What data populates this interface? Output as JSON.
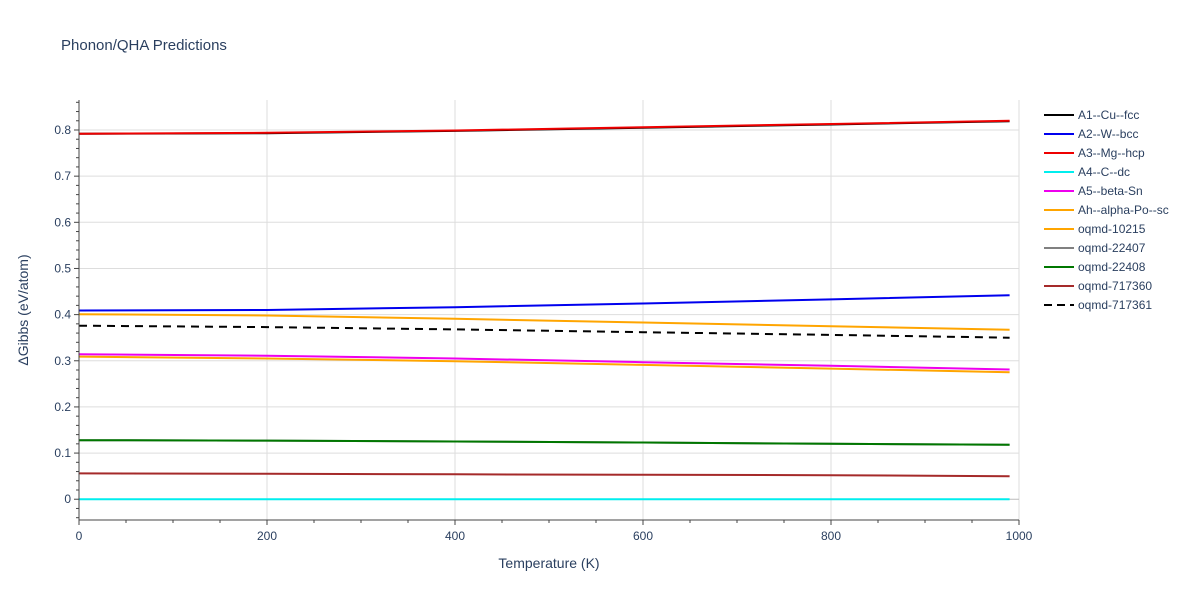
{
  "chart_data": {
    "type": "line",
    "title": "Phonon/QHA Predictions",
    "xlabel": "Temperature (K)",
    "ylabel": "ΔGibbs (eV/atom)",
    "xlim": [
      0,
      1000
    ],
    "ylim": [
      -0.045,
      0.865
    ],
    "xticks": [
      0,
      200,
      400,
      600,
      800,
      1000
    ],
    "xtick_labels": [
      "0",
      "200",
      "400",
      "600",
      "800",
      "1000"
    ],
    "yticks": [
      0,
      0.1,
      0.2,
      0.3,
      0.4,
      0.5,
      0.6,
      0.7,
      0.8
    ],
    "ytick_labels": [
      "0",
      "0.1",
      "0.2",
      "0.3",
      "0.4",
      "0.5",
      "0.6",
      "0.7",
      "0.8"
    ],
    "grid": true,
    "legend_position": "right",
    "series": [
      {
        "name": "A1--Cu--fcc",
        "color": "#000000",
        "dash": "solid",
        "x": [
          0,
          200,
          400,
          600,
          800,
          990
        ],
        "y": [
          0.792,
          0.793,
          0.798,
          0.805,
          0.812,
          0.819
        ]
      },
      {
        "name": "A2--W--bcc",
        "color": "#0000ee",
        "dash": "solid",
        "x": [
          0,
          200,
          400,
          600,
          800,
          990
        ],
        "y": [
          0.409,
          0.41,
          0.416,
          0.424,
          0.433,
          0.442
        ]
      },
      {
        "name": "A3--Mg--hcp",
        "color": "#ee0000",
        "dash": "solid",
        "x": [
          0,
          200,
          400,
          600,
          800,
          990
        ],
        "y": [
          0.792,
          0.794,
          0.799,
          0.806,
          0.813,
          0.82
        ]
      },
      {
        "name": "A4--C--dc",
        "color": "#00eeee",
        "dash": "solid",
        "x": [
          0,
          200,
          400,
          600,
          800,
          990
        ],
        "y": [
          0.0,
          0.0,
          0.0,
          0.0,
          0.0,
          0.0
        ]
      },
      {
        "name": "A5--beta-Sn",
        "color": "#ee00ee",
        "dash": "solid",
        "x": [
          0,
          200,
          400,
          600,
          800,
          990
        ],
        "y": [
          0.314,
          0.311,
          0.305,
          0.297,
          0.289,
          0.281
        ]
      },
      {
        "name": "Ah--alpha-Po--sc",
        "color": "#ffa500",
        "dash": "solid",
        "x": [
          0,
          200,
          400,
          600,
          800,
          990
        ],
        "y": [
          0.309,
          0.305,
          0.299,
          0.291,
          0.283,
          0.275
        ]
      },
      {
        "name": "oqmd-10215",
        "color": "#ffa500",
        "dash": "solid",
        "x": [
          0,
          200,
          400,
          600,
          800,
          990
        ],
        "y": [
          0.401,
          0.398,
          0.391,
          0.383,
          0.375,
          0.367
        ]
      },
      {
        "name": "oqmd-22407",
        "color": "#808080",
        "dash": "solid",
        "x": [
          0,
          200,
          400,
          600,
          800,
          990
        ],
        "y": [
          0.128,
          0.127,
          0.125,
          0.123,
          0.12,
          0.118
        ]
      },
      {
        "name": "oqmd-22408",
        "color": "#007700",
        "dash": "solid",
        "x": [
          0,
          200,
          400,
          600,
          800,
          990
        ],
        "y": [
          0.128,
          0.127,
          0.125,
          0.123,
          0.12,
          0.118
        ]
      },
      {
        "name": "oqmd-717360",
        "color": "#a52a2a",
        "dash": "solid",
        "x": [
          0,
          200,
          400,
          600,
          800,
          990
        ],
        "y": [
          0.056,
          0.055,
          0.054,
          0.053,
          0.052,
          0.05
        ]
      },
      {
        "name": "oqmd-717361",
        "color": "#000000",
        "dash": "dash",
        "x": [
          0,
          200,
          400,
          600,
          800,
          990
        ],
        "y": [
          0.376,
          0.373,
          0.368,
          0.362,
          0.356,
          0.35
        ]
      }
    ]
  }
}
